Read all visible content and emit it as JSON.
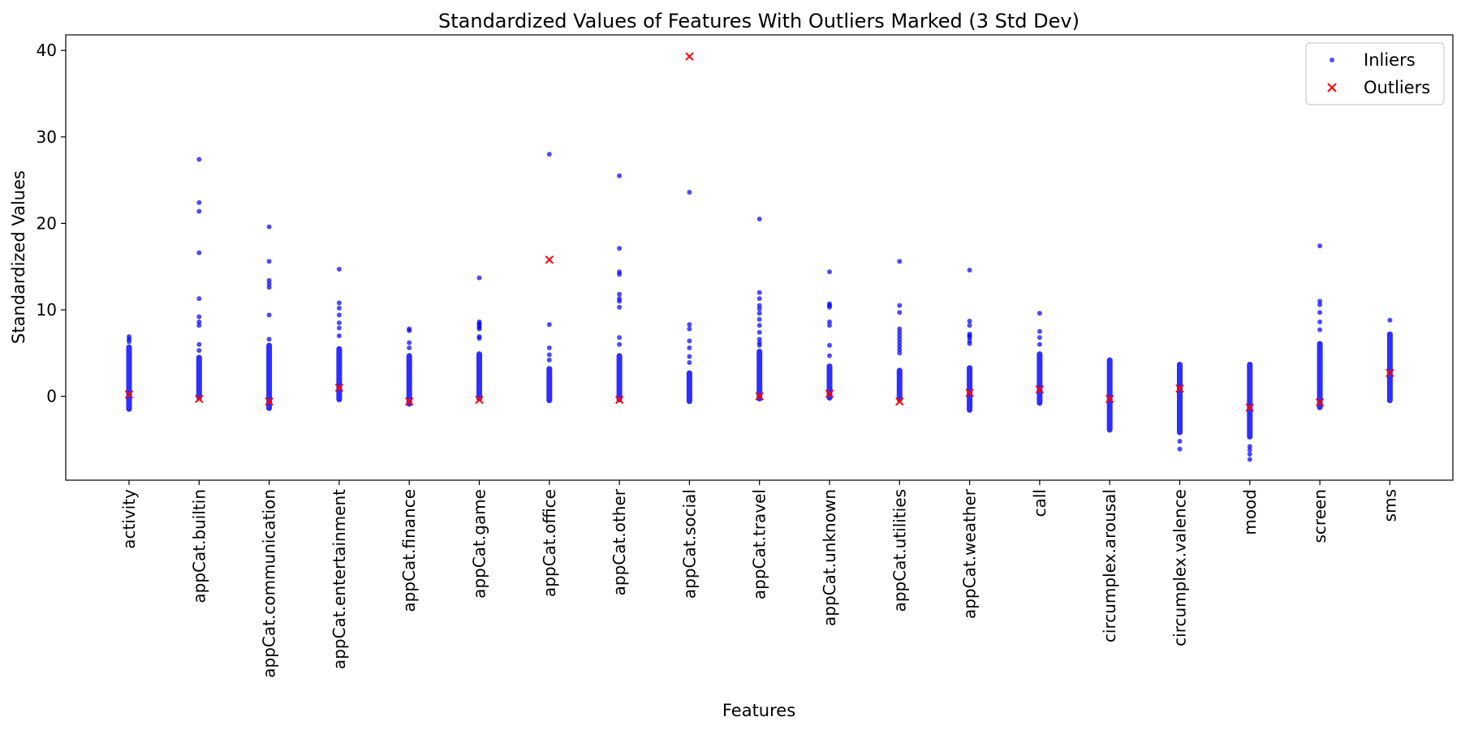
{
  "chart_data": {
    "type": "scatter",
    "title": "Standardized Values of Features With Outliers Marked (3 Std Dev)",
    "xlabel": "Features",
    "ylabel": "Standardized Values",
    "ylim": [
      -9.7,
      41.8
    ],
    "yticks": [
      0,
      10,
      20,
      30,
      40
    ],
    "grid": false,
    "legend_position": "top-right",
    "categories": [
      "activity",
      "appCat.builtin",
      "appCat.communication",
      "appCat.entertainment",
      "appCat.finance",
      "appCat.game",
      "appCat.office",
      "appCat.other",
      "appCat.social",
      "appCat.travel",
      "appCat.unknown",
      "appCat.utilities",
      "appCat.weather",
      "call",
      "circumplex.arousal",
      "circumplex.valence",
      "mood",
      "screen",
      "sms"
    ],
    "series": [
      {
        "name": "Inliers",
        "color": "#0000ff",
        "marker": "dot",
        "points": [
          {
            "feature": "activity",
            "dense_range": [
              -1.8,
              6.0
            ],
            "values": [
              6.9,
              6.6,
              6.3
            ]
          },
          {
            "feature": "appCat.builtin",
            "dense_range": [
              -0.5,
              4.8
            ],
            "values": [
              27.4,
              22.4,
              21.4,
              16.6,
              11.3,
              9.2,
              8.6,
              8.2,
              6.0,
              5.3
            ]
          },
          {
            "feature": "appCat.communication",
            "dense_range": [
              -1.7,
              6.2
            ],
            "values": [
              19.6,
              15.6,
              13.4,
              13.0,
              12.6,
              9.4,
              6.6
            ]
          },
          {
            "feature": "appCat.entertainment",
            "dense_range": [
              -0.7,
              5.8
            ],
            "values": [
              14.7,
              10.8,
              10.2,
              9.4,
              8.5,
              7.9,
              7.0
            ]
          },
          {
            "feature": "appCat.finance",
            "dense_range": [
              -1.2,
              5.0
            ],
            "values": [
              7.8,
              7.6,
              6.2,
              5.6
            ]
          },
          {
            "feature": "appCat.game",
            "dense_range": [
              -0.6,
              5.2
            ],
            "values": [
              13.7,
              8.6,
              8.4,
              8.2,
              8.0,
              7.8,
              6.9,
              6.7
            ]
          },
          {
            "feature": "appCat.office",
            "dense_range": [
              -0.8,
              3.5
            ],
            "values": [
              28.0,
              8.3,
              5.6,
              4.8,
              4.2
            ]
          },
          {
            "feature": "appCat.other",
            "dense_range": [
              -0.7,
              5.0
            ],
            "values": [
              25.5,
              17.1,
              14.4,
              14.1,
              11.8,
              11.3,
              11.0,
              10.3,
              6.8,
              6.0
            ]
          },
          {
            "feature": "appCat.social",
            "dense_range": [
              -0.9,
              3.0
            ],
            "values": [
              23.6,
              8.3,
              7.8,
              6.4,
              5.6,
              4.6,
              3.9
            ]
          },
          {
            "feature": "appCat.travel",
            "dense_range": [
              -0.6,
              5.5
            ],
            "values": [
              20.5,
              12.0,
              11.3,
              10.5,
              10.1,
              9.6,
              8.9,
              8.2,
              7.4,
              6.6,
              6.2,
              5.9
            ]
          },
          {
            "feature": "appCat.unknown",
            "dense_range": [
              -0.5,
              3.8
            ],
            "values": [
              14.4,
              10.7,
              10.5,
              10.3,
              8.6,
              8.2,
              5.9,
              4.7
            ]
          },
          {
            "feature": "appCat.utilities",
            "dense_range": [
              -0.7,
              3.3
            ],
            "values": [
              15.6,
              10.5,
              9.7,
              7.8,
              7.4,
              7.0,
              6.6,
              6.2,
              5.8,
              5.4,
              5.0
            ]
          },
          {
            "feature": "appCat.weather",
            "dense_range": [
              -1.9,
              3.6
            ],
            "values": [
              14.6,
              8.7,
              8.2,
              7.2,
              7.0,
              6.8,
              6.4,
              6.1
            ]
          },
          {
            "feature": "call",
            "dense_range": [
              -1.1,
              5.2
            ],
            "values": [
              9.6,
              7.5,
              6.8,
              6.0
            ]
          },
          {
            "feature": "circumplex.arousal",
            "dense_range": [
              -4.2,
              4.5
            ],
            "values": []
          },
          {
            "feature": "circumplex.valence",
            "dense_range": [
              -4.5,
              4.0
            ],
            "values": [
              -5.2,
              -6.1
            ]
          },
          {
            "feature": "mood",
            "dense_range": [
              -5.0,
              4.0
            ],
            "values": [
              -5.8,
              -6.2,
              -6.7,
              -7.3
            ]
          },
          {
            "feature": "screen",
            "dense_range": [
              -1.6,
              6.4
            ],
            "values": [
              17.4,
              11.0,
              10.6,
              9.7,
              8.6,
              7.7
            ]
          },
          {
            "feature": "sms",
            "dense_range": [
              -0.8,
              7.5
            ],
            "values": [
              8.8
            ]
          }
        ]
      },
      {
        "name": "Outliers",
        "color": "#ff0000",
        "marker": "x",
        "points": [
          {
            "feature": "activity",
            "y": 0.2
          },
          {
            "feature": "appCat.builtin",
            "y": -0.3
          },
          {
            "feature": "appCat.communication",
            "y": -0.6
          },
          {
            "feature": "appCat.entertainment",
            "y": 1.0
          },
          {
            "feature": "appCat.finance",
            "y": -0.6
          },
          {
            "feature": "appCat.game",
            "y": -0.4
          },
          {
            "feature": "appCat.office",
            "y": 15.8
          },
          {
            "feature": "appCat.other",
            "y": -0.4
          },
          {
            "feature": "appCat.social",
            "y": 39.3
          },
          {
            "feature": "appCat.travel",
            "y": 0.0
          },
          {
            "feature": "appCat.unknown",
            "y": 0.3
          },
          {
            "feature": "appCat.utilities",
            "y": -0.6
          },
          {
            "feature": "appCat.weather",
            "y": 0.4
          },
          {
            "feature": "call",
            "y": 0.8
          },
          {
            "feature": "circumplex.arousal",
            "y": -0.3
          },
          {
            "feature": "circumplex.valence",
            "y": 0.9
          },
          {
            "feature": "mood",
            "y": -1.3
          },
          {
            "feature": "screen",
            "y": -0.7
          },
          {
            "feature": "sms",
            "y": 2.7
          }
        ]
      }
    ]
  }
}
